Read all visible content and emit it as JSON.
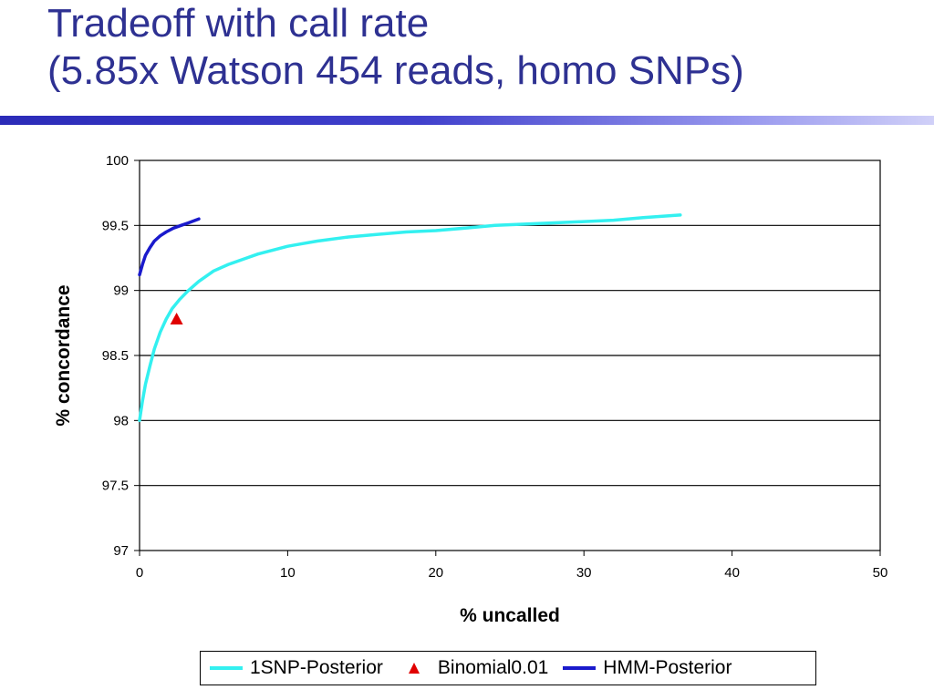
{
  "slide": {
    "title_line1": "Tradeoff with call rate",
    "title_line2": "(5.85x Watson 454 reads, homo SNPs)",
    "title_color": "#2e3192",
    "rule_color": "#2b2bb8"
  },
  "chart_data": {
    "type": "line",
    "xlabel": "% uncalled",
    "ylabel": "% concordance",
    "xlim": [
      0,
      50
    ],
    "ylim": [
      97,
      100
    ],
    "x_ticks": [
      "0",
      "10",
      "20",
      "30",
      "40",
      "50"
    ],
    "y_ticks": [
      "97",
      "97.5",
      "98",
      "98.5",
      "99",
      "99.5",
      "100"
    ],
    "grid": "horizontal",
    "legend_position": "bottom",
    "series": [
      {
        "name": "1SNP-Posterior",
        "kind": "line",
        "color": "#33f0f0",
        "x": [
          0,
          0.2,
          0.4,
          0.7,
          1.0,
          1.4,
          1.8,
          2.2,
          2.7,
          3.3,
          4.0,
          5.0,
          6.0,
          7.0,
          8.0,
          9.0,
          10.0,
          11.0,
          12.0,
          14.0,
          16.0,
          18.0,
          20.0,
          22.0,
          24.0,
          26.0,
          28.0,
          30.0,
          32.0,
          34.0,
          36.5
        ],
        "y": [
          98.0,
          98.15,
          98.28,
          98.42,
          98.55,
          98.68,
          98.78,
          98.86,
          98.93,
          99.0,
          99.07,
          99.15,
          99.2,
          99.24,
          99.28,
          99.31,
          99.34,
          99.36,
          99.38,
          99.41,
          99.43,
          99.45,
          99.46,
          99.48,
          99.5,
          99.51,
          99.52,
          99.53,
          99.54,
          99.56,
          99.58
        ]
      },
      {
        "name": "Binomial0.01",
        "kind": "marker",
        "color": "#e00000",
        "x": [
          2.5
        ],
        "y": [
          98.78
        ]
      },
      {
        "name": "HMM-Posterior",
        "kind": "line",
        "color": "#1a1acc",
        "x": [
          0,
          0.2,
          0.4,
          0.7,
          1.0,
          1.4,
          1.8,
          2.3,
          2.8,
          3.3,
          4.0
        ],
        "y": [
          99.12,
          99.2,
          99.27,
          99.33,
          99.38,
          99.42,
          99.45,
          99.48,
          99.5,
          99.52,
          99.55
        ]
      }
    ]
  }
}
